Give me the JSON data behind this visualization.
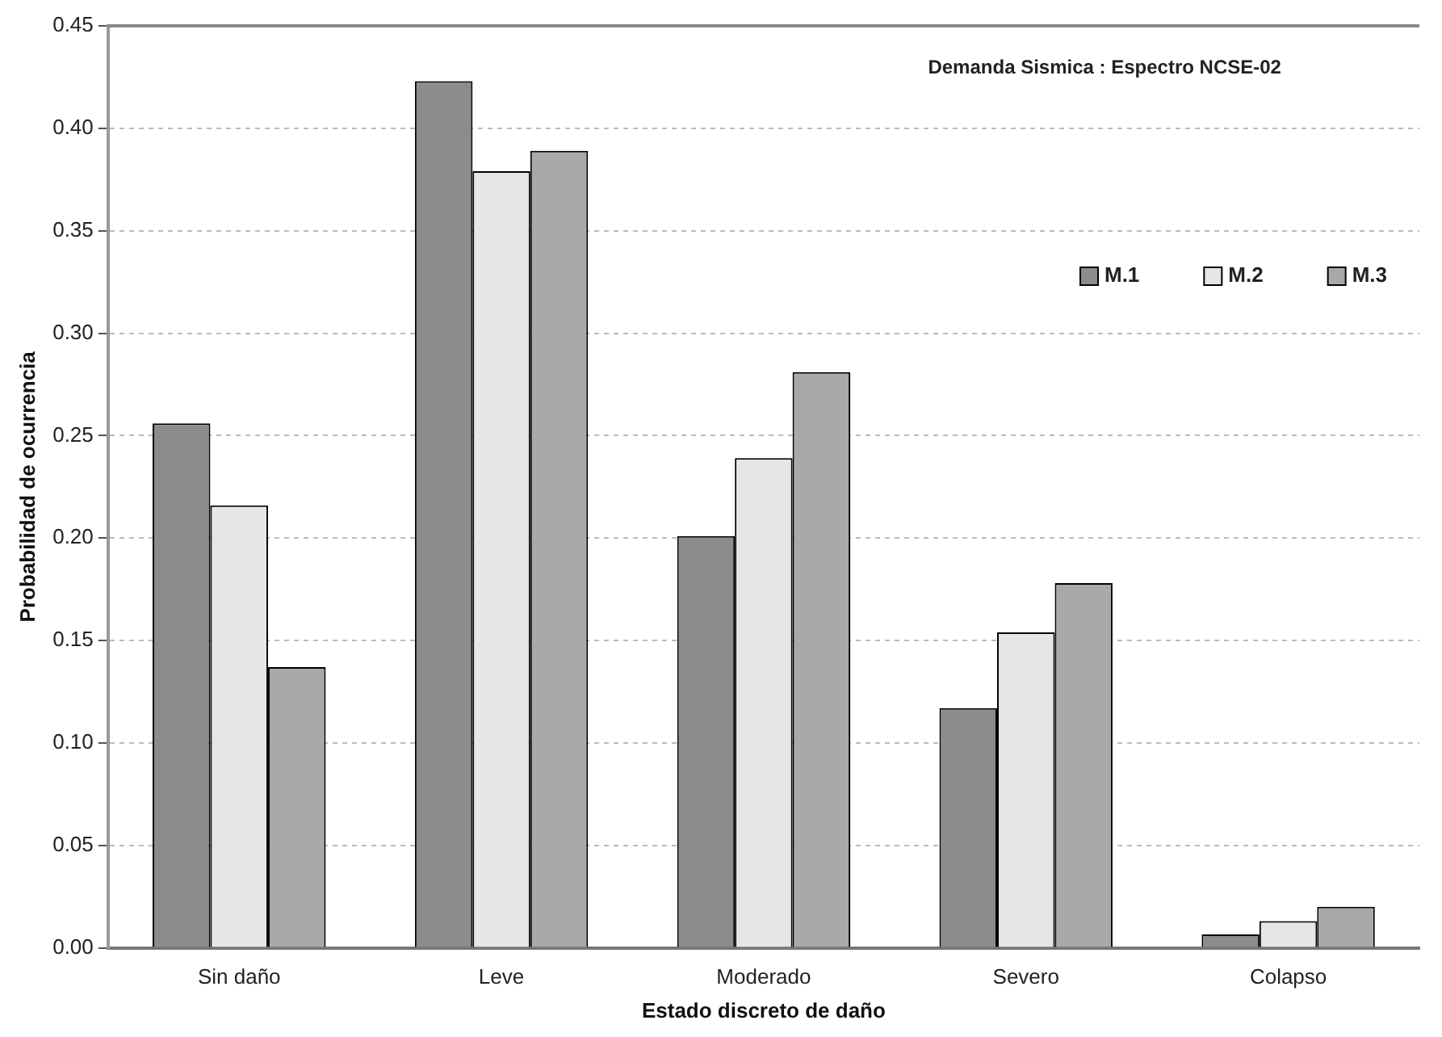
{
  "chart_data": {
    "type": "bar",
    "title": "Demanda Sismica : Espectro NCSE-02",
    "xlabel": "Estado discreto de daño",
    "ylabel": "Probabilidad de ocurrencia",
    "categories": [
      "Sin daño",
      "Leve",
      "Moderado",
      "Severo",
      "Colapso"
    ],
    "series": [
      {
        "name": "M.1",
        "color": "#8c8c8c",
        "values": [
          0.256,
          0.423,
          0.201,
          0.117,
          0.0065
        ]
      },
      {
        "name": "M.2",
        "color": "#e6e6e6",
        "values": [
          0.216,
          0.379,
          0.239,
          0.154,
          0.013
        ]
      },
      {
        "name": "M.3",
        "color": "#a9a9a9",
        "values": [
          0.137,
          0.389,
          0.281,
          0.178,
          0.02
        ]
      }
    ],
    "ylim": [
      0,
      0.45
    ],
    "yticks": [
      {
        "value": 0,
        "label": "0.00"
      },
      {
        "value": 0.05,
        "label": "0.05"
      },
      {
        "value": 0.1,
        "label": "0.10"
      },
      {
        "value": 0.15,
        "label": "0.15"
      },
      {
        "value": 0.2,
        "label": "0.20"
      },
      {
        "value": 0.25,
        "label": "0.25"
      },
      {
        "value": 0.3,
        "label": "0.30"
      },
      {
        "value": 0.35,
        "label": "0.35"
      },
      {
        "value": 0.4,
        "label": "0.40"
      },
      {
        "value": 0.45,
        "label": "0.45"
      }
    ],
    "grid": "y",
    "legend": "top right"
  }
}
